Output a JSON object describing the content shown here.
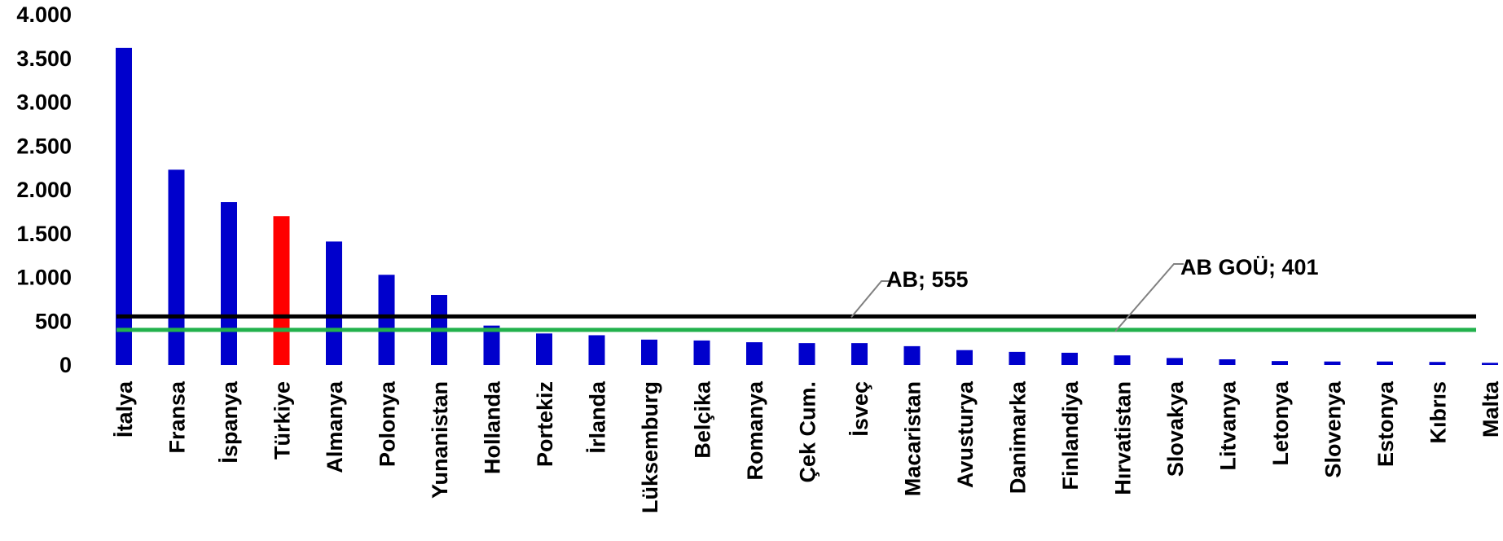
{
  "chart_data": {
    "type": "bar",
    "title": "",
    "xlabel": "",
    "ylabel": "",
    "ylim": [
      0,
      4000
    ],
    "yticks": [
      0,
      500,
      1000,
      1500,
      2000,
      2500,
      3000,
      3500,
      4000
    ],
    "ytick_labels": [
      "0",
      "500",
      "1.000",
      "1.500",
      "2.000",
      "2.500",
      "3.000",
      "3.500",
      "4.000"
    ],
    "categories": [
      "İtalya",
      "Fransa",
      "İspanya",
      "Türkiye",
      "Almanya",
      "Polonya",
      "Yunanistan",
      "Hollanda",
      "Portekiz",
      "İrlanda",
      "Lüksemburg",
      "Belçika",
      "Romanya",
      "Çek Cum.",
      "İsveç",
      "Macaristan",
      "Avusturya",
      "Danimarka",
      "Finlandiya",
      "Hırvatistan",
      "Slovakya",
      "Litvanya",
      "Letonya",
      "Slovenya",
      "Estonya",
      "Kıbrıs",
      "Malta"
    ],
    "values": [
      3620,
      2230,
      1860,
      1700,
      1410,
      1030,
      800,
      450,
      360,
      340,
      290,
      280,
      260,
      250,
      250,
      215,
      170,
      150,
      140,
      110,
      80,
      65,
      45,
      40,
      40,
      35,
      25
    ],
    "bar_color": "#0000CC",
    "highlight": {
      "category": "Türkiye",
      "color": "#FF0000"
    },
    "reference_lines": [
      {
        "name": "AB",
        "value": 555,
        "label": "AB;  555",
        "color": "#000000"
      },
      {
        "name": "AB GOÜ",
        "value": 401,
        "label": "AB GOÜ;  401",
        "color": "#22B14C"
      }
    ],
    "grid": false,
    "legend": "none"
  }
}
